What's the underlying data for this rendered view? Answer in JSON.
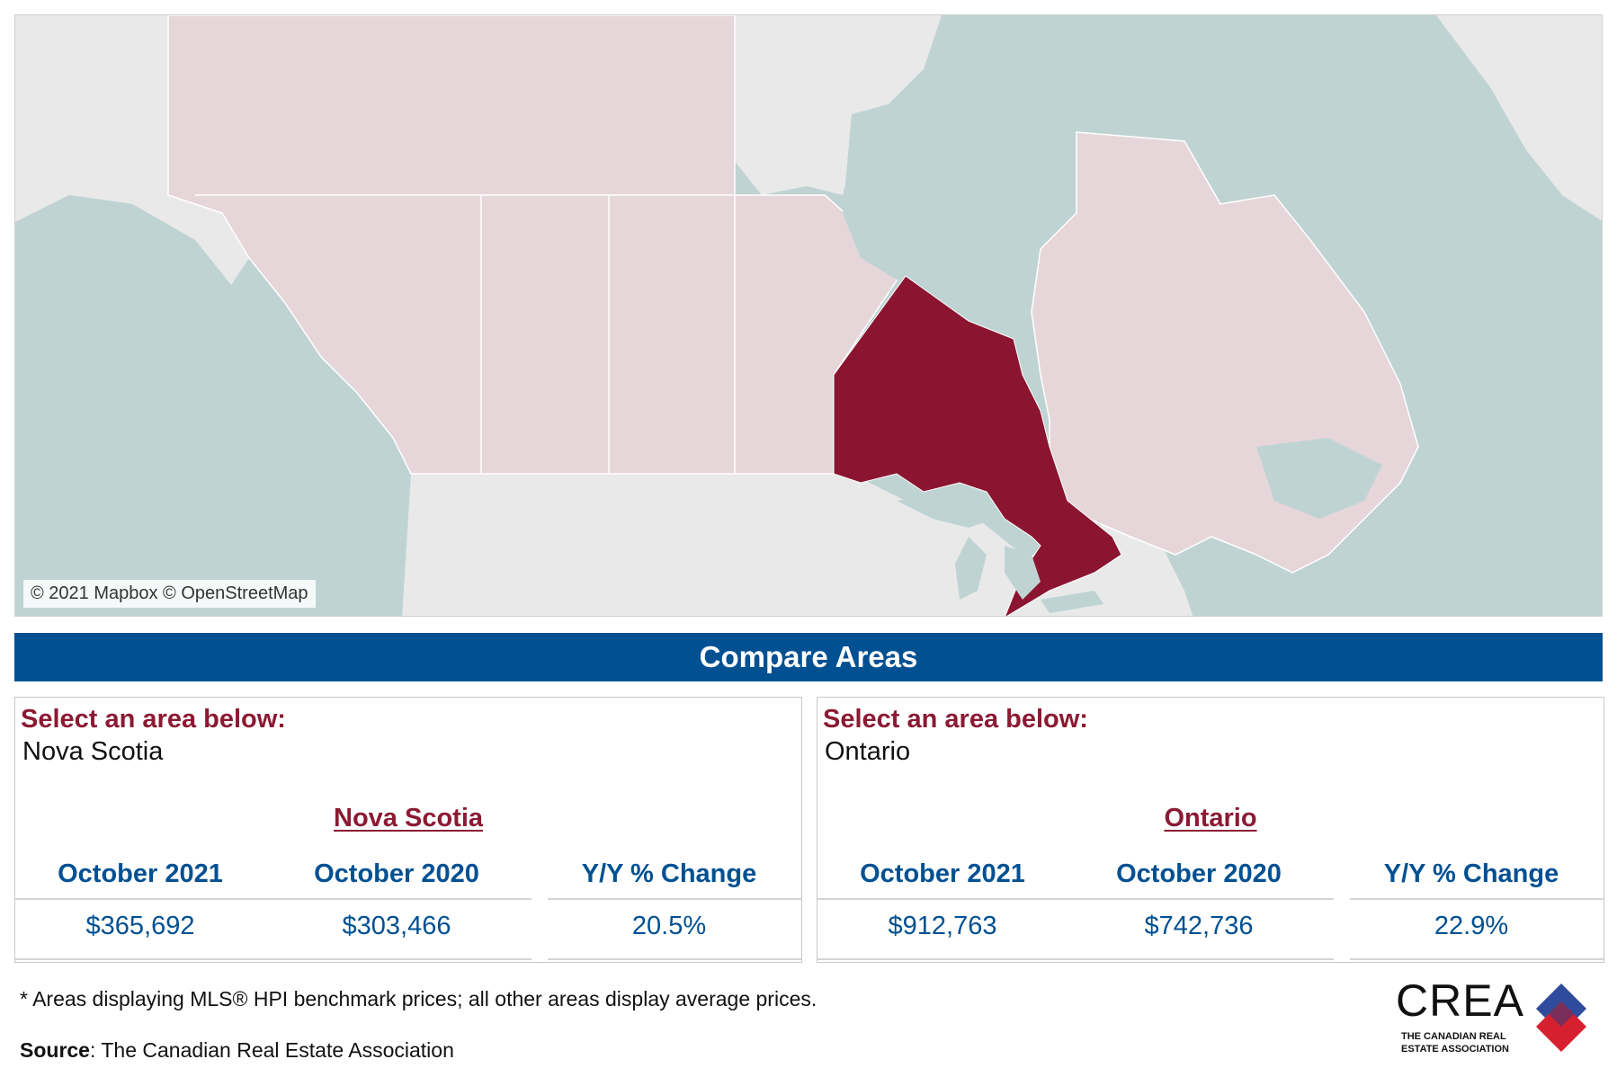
{
  "map": {
    "attribution": "© 2021 Mapbox © OpenStreetMap",
    "selected_region": "Ontario",
    "colors": {
      "water": "#bfd3d3",
      "land": "#e9e9e9",
      "province": "#e6d6da",
      "selected": "#8b1530"
    }
  },
  "banner": {
    "title": "Compare Areas"
  },
  "panels": [
    {
      "select_label": "Select an area below:",
      "selected_value": "Nova Scotia",
      "area_title": "Nova Scotia",
      "headers": [
        "October 2021",
        "October 2020",
        "Y/Y % Change"
      ],
      "values": [
        "$365,692",
        "$303,466",
        "20.5%"
      ]
    },
    {
      "select_label": "Select an area below:",
      "selected_value": "Ontario",
      "area_title": "Ontario",
      "headers": [
        "October 2021",
        "October 2020",
        "Y/Y % Change"
      ],
      "values": [
        "$912,763",
        "$742,736",
        "22.9%"
      ]
    }
  ],
  "footer": {
    "footnote": "* Areas displaying MLS® HPI benchmark prices; all other areas display average prices.",
    "source_label": "Source",
    "source_text": ": The Canadian Real Estate Association"
  },
  "logo": {
    "wordmark": "CREA",
    "subline_1": "THE CANADIAN REAL",
    "subline_2": "ESTATE ASSOCIATION",
    "colors": {
      "red": "#d6202f",
      "blue": "#2f4c9c",
      "purple": "#7a2e5a"
    }
  }
}
